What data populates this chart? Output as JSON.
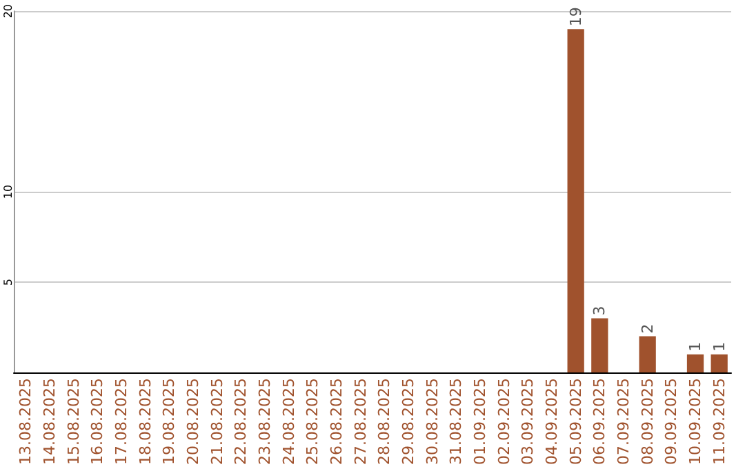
{
  "chart_data": {
    "type": "bar",
    "categories": [
      "13.08.2025",
      "14.08.2025",
      "15.08.2025",
      "16.08.2025",
      "17.08.2025",
      "18.08.2025",
      "19.08.2025",
      "20.08.2025",
      "21.08.2025",
      "22.08.2025",
      "23.08.2025",
      "24.08.2025",
      "25.08.2025",
      "26.08.2025",
      "27.08.2025",
      "28.08.2025",
      "29.08.2025",
      "30.08.2025",
      "31.08.2025",
      "01.09.2025",
      "02.09.2025",
      "03.09.2025",
      "04.09.2025",
      "05.09.2025",
      "06.09.2025",
      "07.09.2025",
      "08.09.2025",
      "09.09.2025",
      "10.09.2025",
      "11.09.2025"
    ],
    "values": [
      0,
      0,
      0,
      0,
      0,
      0,
      0,
      0,
      0,
      0,
      0,
      0,
      0,
      0,
      0,
      0,
      0,
      0,
      0,
      0,
      0,
      0,
      0,
      19,
      3,
      0,
      2,
      0,
      1,
      1
    ],
    "color": "#a0522d",
    "ylim": [
      0,
      20
    ],
    "yticks": [
      5,
      10,
      20
    ],
    "grid": "y",
    "value_labels": [
      null,
      null,
      null,
      null,
      null,
      null,
      null,
      null,
      null,
      null,
      null,
      null,
      null,
      null,
      null,
      null,
      null,
      null,
      null,
      null,
      null,
      null,
      null,
      "19",
      "3",
      null,
      "2",
      null,
      "1",
      "1"
    ]
  }
}
